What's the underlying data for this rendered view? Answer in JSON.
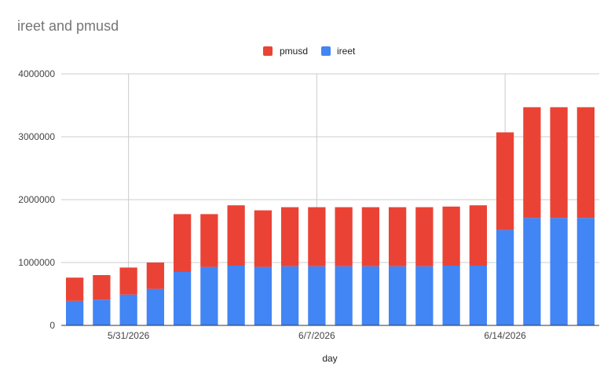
{
  "chart_data": {
    "type": "bar",
    "stacked": true,
    "title": "ireet and pmusd",
    "xlabel": "day",
    "ylabel": "",
    "ylim": [
      0,
      4000000
    ],
    "yticks": [
      0,
      1000000,
      2000000,
      3000000,
      4000000
    ],
    "ytick_labels": [
      "0",
      "1000000",
      "2000000",
      "3000000",
      "4000000"
    ],
    "x": [
      "5/29/2026",
      "5/30/2026",
      "5/31/2026",
      "6/1/2026",
      "6/2/2026",
      "6/3/2026",
      "6/4/2026",
      "6/5/2026",
      "6/6/2026",
      "6/7/2026",
      "6/8/2026",
      "6/9/2026",
      "6/10/2026",
      "6/11/2026",
      "6/12/2026",
      "6/13/2026",
      "6/14/2026",
      "6/15/2026",
      "6/16/2026",
      "6/17/2026"
    ],
    "xtick_labels": [
      "5/31/2026",
      "6/7/2026",
      "6/14/2026"
    ],
    "grid": true,
    "legend_position": "top",
    "series": [
      {
        "name": "ireet",
        "color": "#4285f4",
        "values": [
          390000,
          410000,
          490000,
          580000,
          850000,
          930000,
          950000,
          930000,
          940000,
          940000,
          940000,
          940000,
          940000,
          940000,
          950000,
          950000,
          1520000,
          1710000,
          1710000,
          1710000
        ]
      },
      {
        "name": "pmusd",
        "color": "#ea4335",
        "values": [
          370000,
          390000,
          430000,
          420000,
          920000,
          840000,
          960000,
          900000,
          940000,
          940000,
          940000,
          940000,
          940000,
          940000,
          940000,
          960000,
          1550000,
          1760000,
          1760000,
          1760000
        ]
      }
    ]
  }
}
